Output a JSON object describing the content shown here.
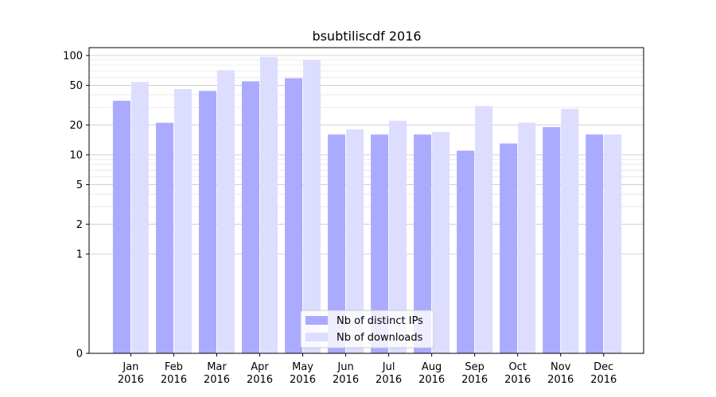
{
  "chart_data": {
    "type": "bar",
    "title": "bsubtiliscdf 2016",
    "xlabel": "",
    "ylabel": "",
    "yscale": "symlog",
    "yticks": [
      0,
      1,
      2,
      5,
      10,
      20,
      50,
      100
    ],
    "ylim": [
      0,
      120
    ],
    "grid": true,
    "legend_position": "bottom-center",
    "categories": [
      [
        "Jan",
        "2016"
      ],
      [
        "Feb",
        "2016"
      ],
      [
        "Mar",
        "2016"
      ],
      [
        "Apr",
        "2016"
      ],
      [
        "May",
        "2016"
      ],
      [
        "Jun",
        "2016"
      ],
      [
        "Jul",
        "2016"
      ],
      [
        "Aug",
        "2016"
      ],
      [
        "Sep",
        "2016"
      ],
      [
        "Oct",
        "2016"
      ],
      [
        "Nov",
        "2016"
      ],
      [
        "Dec",
        "2016"
      ]
    ],
    "series": [
      {
        "name": "Nb of distinct IPs",
        "color": "#aaaaff",
        "values": [
          35,
          21,
          44,
          55,
          59,
          16,
          16,
          16,
          11,
          13,
          19,
          16
        ]
      },
      {
        "name": "Nb of downloads",
        "color": "#ddddff",
        "values": [
          54,
          46,
          71,
          97,
          90,
          18,
          22,
          17,
          31,
          21,
          29,
          16
        ]
      }
    ]
  }
}
